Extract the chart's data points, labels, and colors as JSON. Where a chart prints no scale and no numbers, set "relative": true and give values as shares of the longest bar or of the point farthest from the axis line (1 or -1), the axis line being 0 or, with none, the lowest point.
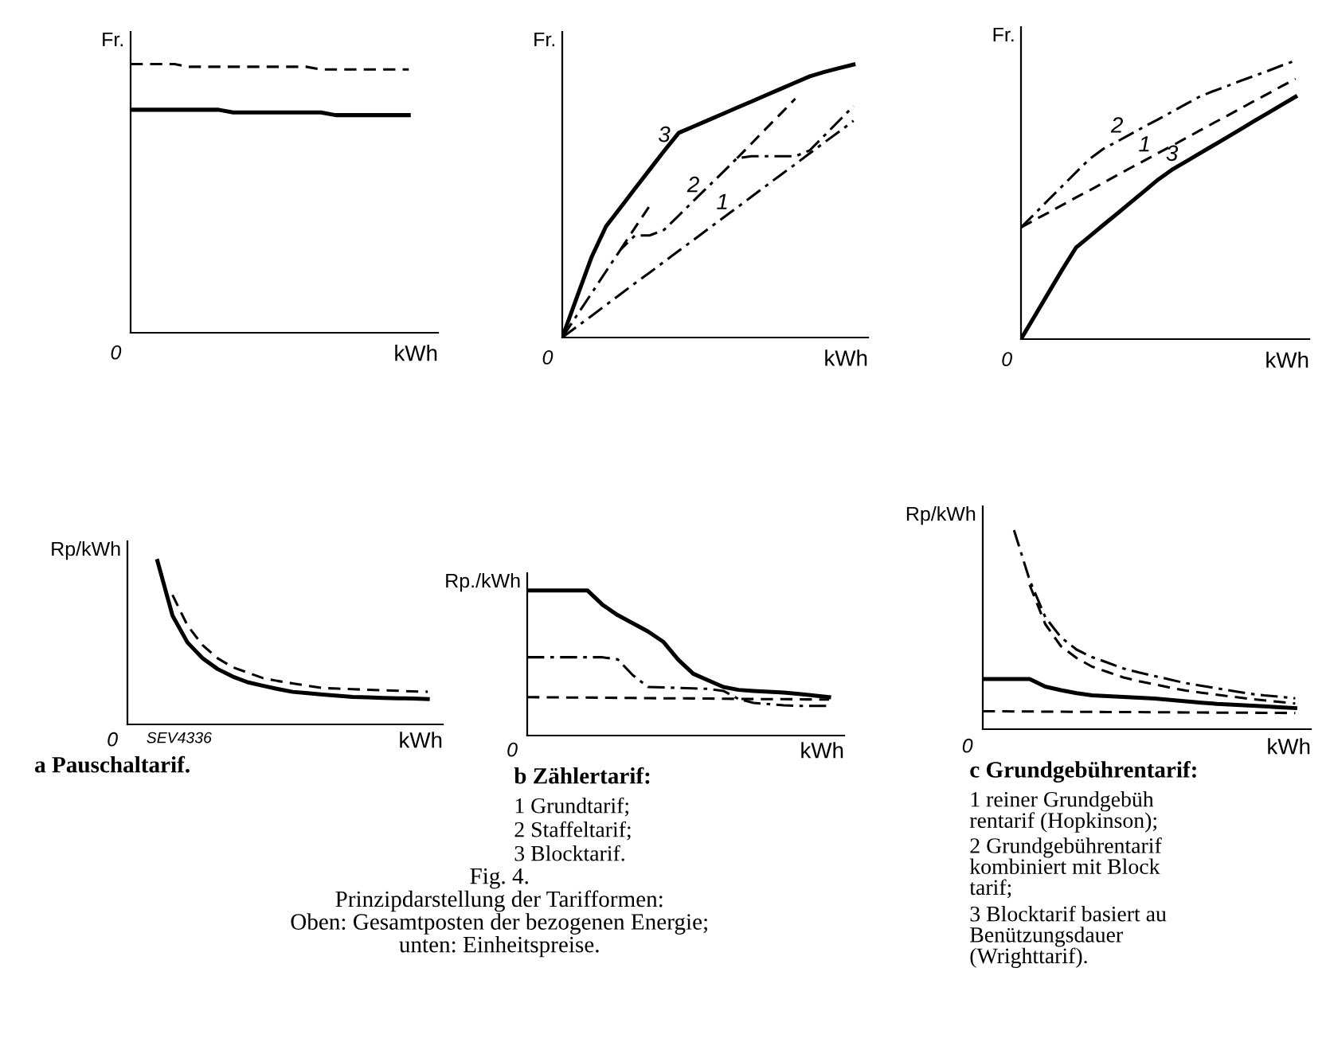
{
  "chart_data": [
    {
      "type": "line",
      "relative": true,
      "ylabel": "Fr.",
      "xlabel": "kWh",
      "annotations": [
        "0"
      ],
      "categories": [
        null,
        null,
        null,
        null,
        null,
        null,
        null,
        null,
        null,
        null,
        null,
        null,
        null,
        null,
        null,
        null,
        null,
        null,
        null,
        null,
        null
      ],
      "series": [
        {
          "color": "#000000",
          "line_style": "dashed",
          "values": [
            1.0,
            1.0,
            1.0,
            1.0,
            0.99,
            0.99,
            0.99,
            0.99,
            0.99,
            0.99,
            0.99,
            0.99,
            0.99,
            0.98,
            0.98,
            0.98,
            0.98,
            0.98,
            0.98,
            0.98,
            null
          ]
        },
        {
          "color": "#000000",
          "line_style": "solid",
          "values": [
            0.83,
            0.83,
            0.83,
            0.83,
            0.83,
            0.83,
            0.83,
            0.82,
            0.82,
            0.82,
            0.82,
            0.82,
            0.82,
            0.82,
            0.81,
            0.81,
            0.81,
            0.81,
            0.81,
            0.81,
            null
          ]
        }
      ]
    },
    {
      "type": "line",
      "relative": true,
      "ylabel": "Fr.",
      "xlabel": "kWh",
      "annotations": [
        "0"
      ],
      "categories": [
        null,
        null,
        null,
        null,
        null,
        null,
        null,
        null,
        null,
        null,
        null,
        null,
        null,
        null,
        null,
        null,
        null,
        null,
        null,
        null,
        null
      ],
      "series": [
        {
          "name": "3",
          "color": "#000000",
          "line_style": "solid",
          "values": [
            0,
            0.147,
            0.293,
            0.407,
            0.476,
            0.546,
            0.615,
            0.684,
            0.75,
            0.773,
            0.796,
            0.819,
            0.842,
            0.865,
            0.888,
            0.911,
            0.934,
            0.957,
            0.973,
            0.987,
            1.0
          ]
        },
        {
          "name": "2",
          "color": "#000000",
          "line_style": "dashdot",
          "values": [
            0,
            0.081,
            0.161,
            0.242,
            0.322,
            0.374,
            0.374,
            0.395,
            0.447,
            0.5,
            0.552,
            0.604,
            0.657,
            0.664,
            0.664,
            0.664,
            0.664,
            0.686,
            0.74,
            0.794,
            0.848
          ]
        },
        {
          "name": "1",
          "color": "#000000",
          "line_style": "dashdot",
          "values": [
            0,
            0.04,
            0.079,
            0.119,
            0.159,
            0.199,
            0.238,
            0.278,
            0.318,
            0.357,
            0.397,
            0.437,
            0.476,
            0.516,
            0.556,
            0.596,
            0.635,
            0.675,
            0.715,
            0.754,
            0.794
          ]
        },
        {
          "color": "#000000",
          "line_style": "dashed",
          "values": [
            null,
            null,
            null,
            null,
            0.322,
            0.403,
            0.482,
            null,
            null,
            null,
            null,
            null,
            0.657,
            0.711,
            0.766,
            0.82,
            0.875,
            null,
            null,
            null,
            null
          ]
        }
      ]
    },
    {
      "type": "line",
      "relative": true,
      "ylabel": "Fr.",
      "xlabel": "kWh",
      "annotations": [
        "0"
      ],
      "categories": [
        null,
        null,
        null,
        null,
        null,
        null,
        null,
        null,
        null,
        null,
        null,
        null,
        null,
        null,
        null,
        null,
        null,
        null,
        null,
        null,
        null
      ],
      "series": [
        {
          "name": "2",
          "color": "#000000",
          "line_style": "dashdot",
          "values": [
            0.401,
            0.45,
            0.5,
            0.549,
            0.598,
            0.647,
            0.683,
            0.709,
            0.736,
            0.763,
            0.789,
            0.816,
            0.843,
            0.87,
            0.89,
            0.908,
            0.927,
            0.945,
            0.963,
            0.982,
            1.0
          ]
        },
        {
          "name": "1",
          "color": "#000000",
          "line_style": "dashed",
          "values": [
            0.401,
            0.428,
            0.454,
            0.481,
            0.508,
            0.534,
            0.561,
            0.588,
            0.615,
            0.641,
            0.668,
            0.694,
            0.721,
            0.748,
            0.775,
            0.801,
            0.828,
            0.855,
            0.881,
            0.908,
            0.934
          ]
        },
        {
          "name": "3",
          "color": "#000000",
          "line_style": "solid",
          "values": [
            0,
            0.083,
            0.166,
            0.249,
            0.328,
            0.369,
            0.41,
            0.45,
            0.491,
            0.532,
            0.573,
            0.608,
            0.637,
            0.666,
            0.695,
            0.724,
            0.753,
            0.783,
            0.812,
            0.841,
            0.87
          ]
        }
      ]
    },
    {
      "type": "line",
      "relative": true,
      "ylabel": "Rp/kWh",
      "xlabel": "kWh",
      "title": "a Pauschaltarif.",
      "annotations": [
        "0",
        "SEV4336"
      ],
      "categories": [
        null,
        null,
        null,
        null,
        null,
        null,
        null,
        null,
        null,
        null,
        null,
        null,
        null,
        null,
        null,
        null,
        null,
        null,
        null,
        null,
        null
      ],
      "series": [
        {
          "color": "#000000",
          "line_style": "solid",
          "values": [
            null,
            null,
            1.0,
            0.666,
            0.501,
            0.405,
            0.339,
            0.293,
            0.258,
            0.237,
            0.217,
            0.199,
            0.191,
            0.183,
            0.175,
            0.168,
            0.165,
            0.162,
            0.16,
            0.158,
            0.155
          ]
        },
        {
          "color": "#000000",
          "line_style": "dashed",
          "values": [
            null,
            null,
            null,
            0.792,
            0.605,
            0.485,
            0.405,
            0.35,
            0.317,
            0.284,
            0.266,
            0.251,
            0.236,
            0.222,
            0.219,
            0.215,
            0.212,
            0.209,
            0.206,
            0.202,
            0.2
          ]
        }
      ]
    },
    {
      "type": "line",
      "relative": true,
      "ylabel": "Rp./kWh",
      "xlabel": "kWh",
      "title": "b Zählertarif:",
      "subtitle": "Fig. 4.\nPrinzipdarstellung der Tarifformen:\nOben: Gesamtposten der bezogenen Energie;\nunten: Einheitspreise.",
      "annotations": [
        "0",
        "1 Grundtarif;",
        "2 Staffeltarif;",
        "3 Blocktarif."
      ],
      "categories": [
        null,
        null,
        null,
        null,
        null,
        null,
        null,
        null,
        null,
        null,
        null,
        null,
        null,
        null,
        null,
        null,
        null,
        null,
        null,
        null,
        null
      ],
      "series": [
        {
          "color": "#000000",
          "line_style": "solid",
          "values": [
            1.0,
            1.0,
            1.0,
            1.0,
            1.0,
            0.901,
            0.83,
            0.774,
            0.718,
            0.648,
            0.524,
            0.426,
            0.38,
            0.335,
            0.315,
            0.308,
            0.302,
            0.296,
            0.287,
            0.276,
            0.265
          ]
        },
        {
          "color": "#000000",
          "line_style": "dashdot",
          "values": [
            0.54,
            0.54,
            0.54,
            0.54,
            0.54,
            0.54,
            0.525,
            0.416,
            0.335,
            0.332,
            0.328,
            0.325,
            0.322,
            0.308,
            0.252,
            0.225,
            0.217,
            0.209,
            0.204,
            0.204,
            0.204
          ]
        },
        {
          "color": "#000000",
          "line_style": "dashed",
          "values": [
            0.265,
            0.264,
            0.263,
            0.262,
            0.262,
            0.261,
            0.26,
            0.259,
            0.258,
            0.257,
            0.257,
            0.256,
            0.255,
            0.254,
            0.253,
            0.252,
            0.251,
            0.251,
            0.25,
            0.249,
            0.248
          ]
        }
      ]
    },
    {
      "type": "line",
      "relative": true,
      "ylabel": "Rp/kWh",
      "xlabel": "kWh",
      "title": "c Grundgebührentarif:",
      "annotations": [
        "0",
        "1 reiner Grundgebüh\nrentarif (Hopkinson);",
        "2 Grundgebührentarif\nkombiniert mit Block\ntarif;",
        "3 Blocktarif basiert au\nBenützungsdauer\n(Wrighttarif)."
      ],
      "categories": [
        null,
        null,
        null,
        null,
        null,
        null,
        null,
        null,
        null,
        null,
        null,
        null,
        null,
        null,
        null,
        null,
        null,
        null,
        null,
        null,
        null
      ],
      "series": [
        {
          "color": "#000000",
          "line_style": "dashdot",
          "values": [
            null,
            null,
            1.0,
            0.749,
            0.563,
            0.462,
            0.4,
            0.362,
            0.334,
            0.305,
            0.285,
            0.267,
            0.249,
            0.231,
            0.218,
            0.205,
            0.192,
            0.179,
            0.17,
            0.163,
            0.155
          ]
        },
        {
          "color": "#000000",
          "line_style": "dashed",
          "values": [
            null,
            null,
            null,
            0.725,
            0.528,
            0.417,
            0.358,
            0.314,
            0.287,
            0.26,
            0.241,
            0.225,
            0.209,
            0.194,
            0.183,
            0.173,
            0.163,
            0.153,
            0.145,
            0.137,
            0.129
          ]
        },
        {
          "color": "#000000",
          "line_style": "solid",
          "values": [
            0.252,
            0.252,
            0.252,
            0.252,
            0.214,
            0.196,
            0.181,
            0.17,
            0.166,
            0.162,
            0.158,
            0.154,
            0.147,
            0.14,
            0.133,
            0.127,
            0.123,
            0.119,
            0.115,
            0.11,
            0.106
          ]
        },
        {
          "color": "#000000",
          "line_style": "dashed",
          "values": [
            0.09,
            0.09,
            0.089,
            0.089,
            0.088,
            0.088,
            0.087,
            0.087,
            0.086,
            0.086,
            0.086,
            0.085,
            0.085,
            0.084,
            0.084,
            0.083,
            0.083,
            0.083,
            0.082,
            0.082,
            0.081
          ]
        }
      ]
    }
  ]
}
